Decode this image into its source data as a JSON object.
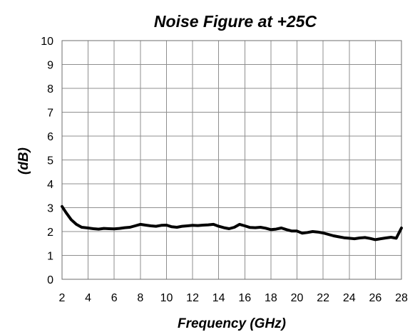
{
  "chart_data": {
    "type": "line",
    "title": "Noise Figure at +25C",
    "xlabel": "Frequency (GHz)",
    "ylabel": "(dB)",
    "xlim": [
      2,
      28
    ],
    "ylim": [
      0,
      10
    ],
    "x_ticks": [
      2,
      4,
      6,
      8,
      10,
      12,
      14,
      16,
      18,
      20,
      22,
      24,
      26,
      28
    ],
    "y_ticks": [
      0,
      1,
      2,
      3,
      4,
      5,
      6,
      7,
      8,
      9,
      10
    ],
    "grid": true,
    "legend": "none",
    "series": [
      {
        "color": "#000000",
        "x": [
          2.0,
          2.3,
          2.7,
          3.1,
          3.5,
          4.0,
          4.4,
          4.8,
          5.2,
          5.6,
          6.0,
          6.4,
          6.8,
          7.2,
          7.6,
          8.0,
          8.4,
          8.8,
          9.2,
          9.6,
          10.0,
          10.4,
          10.8,
          11.2,
          11.6,
          12.0,
          12.4,
          12.8,
          13.2,
          13.6,
          14.0,
          14.4,
          14.8,
          15.2,
          15.6,
          16.0,
          16.4,
          16.8,
          17.2,
          17.6,
          18.0,
          18.4,
          18.8,
          19.2,
          19.6,
          20.0,
          20.4,
          20.8,
          21.2,
          21.6,
          22.0,
          22.4,
          22.8,
          23.2,
          23.6,
          24.0,
          24.4,
          24.8,
          25.2,
          25.6,
          26.0,
          26.4,
          26.8,
          27.2,
          27.6,
          28.0
        ],
        "values": [
          3.05,
          2.8,
          2.5,
          2.3,
          2.18,
          2.15,
          2.12,
          2.1,
          2.13,
          2.12,
          2.11,
          2.13,
          2.16,
          2.18,
          2.24,
          2.3,
          2.27,
          2.24,
          2.22,
          2.26,
          2.27,
          2.2,
          2.18,
          2.22,
          2.24,
          2.26,
          2.25,
          2.27,
          2.28,
          2.3,
          2.22,
          2.16,
          2.12,
          2.18,
          2.3,
          2.24,
          2.17,
          2.16,
          2.18,
          2.14,
          2.08,
          2.1,
          2.15,
          2.08,
          2.02,
          2.02,
          1.93,
          1.96,
          2.0,
          1.98,
          1.94,
          1.88,
          1.82,
          1.78,
          1.74,
          1.72,
          1.7,
          1.73,
          1.75,
          1.71,
          1.66,
          1.7,
          1.73,
          1.76,
          1.72,
          2.15
        ]
      }
    ]
  }
}
